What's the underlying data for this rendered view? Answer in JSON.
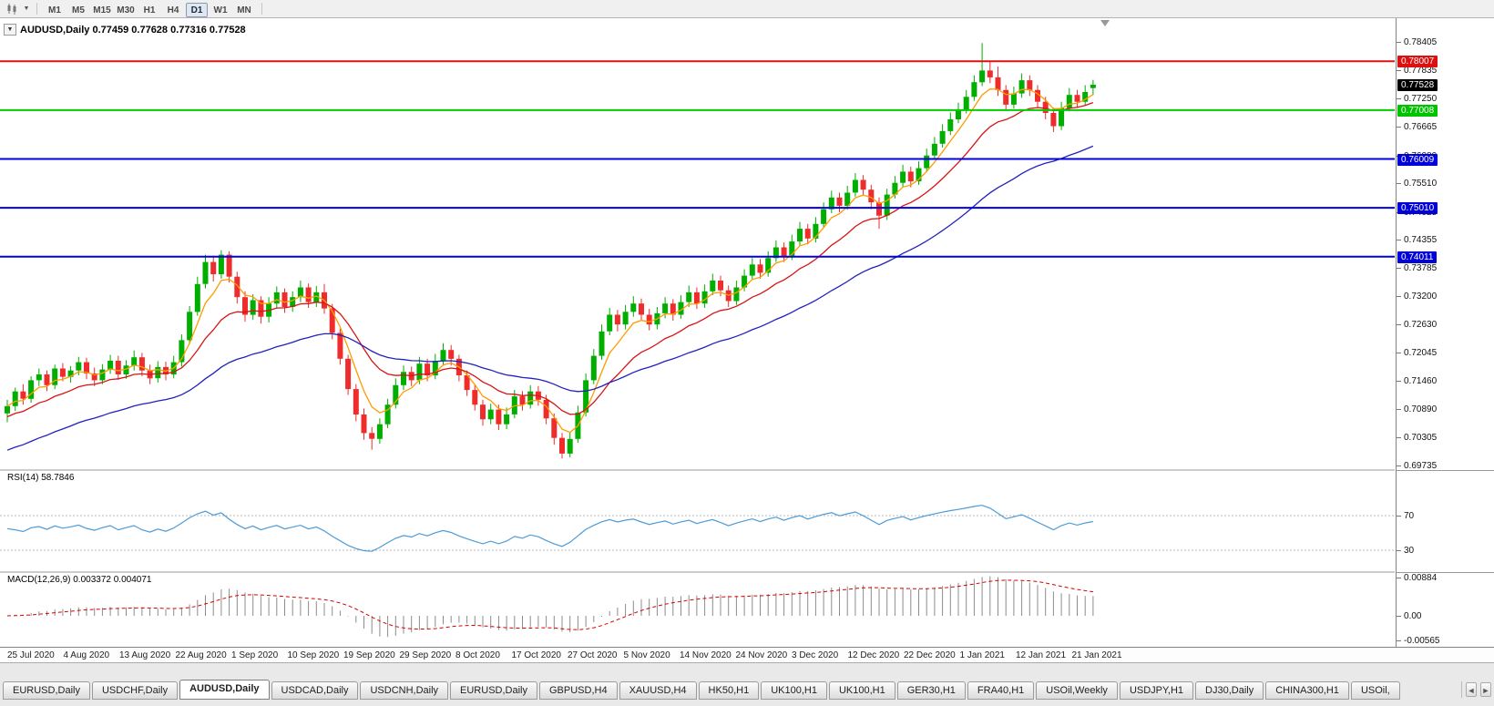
{
  "toolbar": {
    "dropdown_icon": "▼",
    "timeframes": [
      {
        "label": "M1",
        "active": false
      },
      {
        "label": "M5",
        "active": false
      },
      {
        "label": "M15",
        "active": false
      },
      {
        "label": "M30",
        "active": false
      },
      {
        "label": "H1",
        "active": false
      },
      {
        "label": "H4",
        "active": false
      },
      {
        "label": "D1",
        "active": true
      },
      {
        "label": "W1",
        "active": false
      },
      {
        "label": "MN",
        "active": false
      }
    ]
  },
  "chart": {
    "title": "AUDUSD,Daily 0.77459 0.77628 0.77316 0.77528",
    "collapse_icon": "▼"
  },
  "price_scale": {
    "labels": [
      "0.78405",
      "0.77835",
      "0.77250",
      "0.76665",
      "0.76080",
      "0.75510",
      "0.74925",
      "0.74355",
      "0.73785",
      "0.73200",
      "0.72630",
      "0.72045",
      "0.71460",
      "0.70890",
      "0.70305",
      "0.69735"
    ],
    "line_labels": [
      {
        "text": "0.78007",
        "price": 0.78007,
        "bg": "#dd1010",
        "fg": "#ffffff"
      },
      {
        "text": "0.77528",
        "price": 0.77528,
        "bg": "#000000",
        "fg": "#ffffff"
      },
      {
        "text": "0.77008",
        "price": 0.77008,
        "bg": "#00c300",
        "fg": "#ffffff"
      },
      {
        "text": "0.76009",
        "price": 0.76009,
        "bg": "#0000d8",
        "fg": "#ffffff"
      },
      {
        "text": "0.75010",
        "price": 0.7501,
        "bg": "#0000d8",
        "fg": "#ffffff"
      },
      {
        "text": "0.74011",
        "price": 0.74011,
        "bg": "#0000d8",
        "fg": "#ffffff"
      }
    ],
    "rsi_labels": [
      {
        "text": "70",
        "value": 70
      },
      {
        "text": "30",
        "value": 30
      }
    ],
    "macd_labels": [
      {
        "text": "0.00884",
        "value": 0.00884
      },
      {
        "text": "0.00",
        "value": 0
      },
      {
        "text": "-0.00565",
        "value": -0.00565
      }
    ]
  },
  "chart_data": {
    "type": "candlestick",
    "symbol": "AUDUSD",
    "period": "Daily",
    "up_color": "#00ae00",
    "down_color": "#ee2c2c",
    "x_labels": [
      "25 Jul 2020",
      "4 Aug 2020",
      "13 Aug 2020",
      "22 Aug 2020",
      "1 Sep 2020",
      "10 Sep 2020",
      "19 Sep 2020",
      "29 Sep 2020",
      "8 Oct 2020",
      "17 Oct 2020",
      "27 Oct 2020",
      "5 Nov 2020",
      "14 Nov 2020",
      "24 Nov 2020",
      "3 Dec 2020",
      "12 Dec 2020",
      "22 Dec 2020",
      "1 Jan 2021",
      "12 Jan 2021",
      "21 Jan 2021"
    ],
    "y_range": [
      0.69735,
      0.78405
    ],
    "h_lines": [
      {
        "price": 0.78007,
        "color": "#e01010"
      },
      {
        "price": 0.77008,
        "color": "#00ce00"
      },
      {
        "price": 0.76009,
        "color": "#0000e0"
      },
      {
        "price": 0.7501,
        "color": "#0000e0"
      },
      {
        "price": 0.74011,
        "color": "#0000e0"
      }
    ],
    "moving_averages": [
      {
        "period": 5,
        "color": "#ff9c00",
        "seed": null
      },
      {
        "period": 14,
        "color": "#d81414",
        "seed": 0.707
      },
      {
        "period": 38,
        "color": "#2121bd",
        "seed": 0.7
      }
    ],
    "rsi": {
      "title": "RSI(14) 58.7846",
      "period": 14,
      "value": "58.7846",
      "levels": [
        70,
        30
      ],
      "color": "#4f9bd5"
    },
    "macd": {
      "title": "MACD(12,26,9) 0.003372 0.004071",
      "fast": 12,
      "slow": 26,
      "signal": 9,
      "value_main": "0.003372",
      "value_signal": "0.004071",
      "hist_color": "#8c8c8c",
      "signal_color": "#d40000"
    },
    "candles": [
      [
        0.708,
        0.7108,
        0.7062,
        0.7095
      ],
      [
        0.7095,
        0.7133,
        0.7085,
        0.7125
      ],
      [
        0.7125,
        0.714,
        0.7098,
        0.711
      ],
      [
        0.711,
        0.7156,
        0.7102,
        0.7148
      ],
      [
        0.7148,
        0.7172,
        0.7136,
        0.716
      ],
      [
        0.716,
        0.7168,
        0.7126,
        0.7138
      ],
      [
        0.7138,
        0.718,
        0.713,
        0.7172
      ],
      [
        0.7172,
        0.7183,
        0.7146,
        0.7155
      ],
      [
        0.7155,
        0.7177,
        0.7143,
        0.7168
      ],
      [
        0.7168,
        0.7196,
        0.7158,
        0.7185
      ],
      [
        0.7185,
        0.7194,
        0.715,
        0.7162
      ],
      [
        0.7162,
        0.7174,
        0.7136,
        0.7148
      ],
      [
        0.7148,
        0.7181,
        0.714,
        0.717
      ],
      [
        0.717,
        0.72,
        0.7161,
        0.7188
      ],
      [
        0.7188,
        0.7198,
        0.7149,
        0.716
      ],
      [
        0.716,
        0.7189,
        0.7151,
        0.7178
      ],
      [
        0.7178,
        0.7209,
        0.7168,
        0.7195
      ],
      [
        0.7195,
        0.7204,
        0.7156,
        0.7168
      ],
      [
        0.7168,
        0.718,
        0.714,
        0.7152
      ],
      [
        0.7152,
        0.7187,
        0.7143,
        0.7175
      ],
      [
        0.7175,
        0.7186,
        0.7148,
        0.716
      ],
      [
        0.716,
        0.7198,
        0.7152,
        0.7185
      ],
      [
        0.7185,
        0.7242,
        0.7176,
        0.723
      ],
      [
        0.723,
        0.73,
        0.7222,
        0.7288
      ],
      [
        0.7288,
        0.736,
        0.728,
        0.7345
      ],
      [
        0.7345,
        0.7405,
        0.7336,
        0.739
      ],
      [
        0.739,
        0.7403,
        0.735,
        0.7365
      ],
      [
        0.7365,
        0.7414,
        0.7356,
        0.7405
      ],
      [
        0.7405,
        0.7412,
        0.7348,
        0.736
      ],
      [
        0.736,
        0.737,
        0.7305,
        0.7318
      ],
      [
        0.7318,
        0.733,
        0.7268,
        0.7282
      ],
      [
        0.7282,
        0.7324,
        0.7272,
        0.7312
      ],
      [
        0.7312,
        0.732,
        0.7264,
        0.7278
      ],
      [
        0.7278,
        0.7318,
        0.7266,
        0.7305
      ],
      [
        0.7305,
        0.734,
        0.7295,
        0.7328
      ],
      [
        0.7328,
        0.7336,
        0.7286,
        0.7298
      ],
      [
        0.7298,
        0.733,
        0.7288,
        0.7318
      ],
      [
        0.7318,
        0.7352,
        0.7308,
        0.7338
      ],
      [
        0.7338,
        0.7346,
        0.7296,
        0.7308
      ],
      [
        0.7308,
        0.7341,
        0.7298,
        0.7328
      ],
      [
        0.7328,
        0.7345,
        0.7284,
        0.7295
      ],
      [
        0.7295,
        0.7304,
        0.7232,
        0.7245
      ],
      [
        0.7245,
        0.7254,
        0.718,
        0.7192
      ],
      [
        0.7192,
        0.72,
        0.7118,
        0.713
      ],
      [
        0.713,
        0.714,
        0.7064,
        0.7078
      ],
      [
        0.7078,
        0.709,
        0.7026,
        0.704
      ],
      [
        0.704,
        0.7052,
        0.7006,
        0.7028
      ],
      [
        0.7028,
        0.707,
        0.7018,
        0.7058
      ],
      [
        0.7058,
        0.711,
        0.705,
        0.7098
      ],
      [
        0.7098,
        0.7152,
        0.709,
        0.7138
      ],
      [
        0.7138,
        0.7178,
        0.7128,
        0.7165
      ],
      [
        0.7165,
        0.7176,
        0.7136,
        0.7148
      ],
      [
        0.7148,
        0.7196,
        0.714,
        0.7182
      ],
      [
        0.7182,
        0.7192,
        0.7146,
        0.7158
      ],
      [
        0.7158,
        0.7202,
        0.715,
        0.7188
      ],
      [
        0.7188,
        0.7224,
        0.718,
        0.721
      ],
      [
        0.721,
        0.722,
        0.7178,
        0.7192
      ],
      [
        0.7192,
        0.72,
        0.7146,
        0.7158
      ],
      [
        0.7158,
        0.7168,
        0.7116,
        0.7128
      ],
      [
        0.7128,
        0.7138,
        0.7086,
        0.7098
      ],
      [
        0.7098,
        0.7108,
        0.7055,
        0.7068
      ],
      [
        0.7068,
        0.71,
        0.7058,
        0.7088
      ],
      [
        0.7088,
        0.7098,
        0.7046,
        0.7058
      ],
      [
        0.7058,
        0.7092,
        0.7048,
        0.7078
      ],
      [
        0.7078,
        0.7128,
        0.707,
        0.7115
      ],
      [
        0.7115,
        0.7126,
        0.7086,
        0.7098
      ],
      [
        0.7098,
        0.7138,
        0.709,
        0.7125
      ],
      [
        0.7125,
        0.7136,
        0.7096,
        0.7108
      ],
      [
        0.7108,
        0.7118,
        0.7058,
        0.707
      ],
      [
        0.707,
        0.708,
        0.7016,
        0.703
      ],
      [
        0.703,
        0.704,
        0.6988,
        0.6998
      ],
      [
        0.6998,
        0.7042,
        0.699,
        0.7028
      ],
      [
        0.7028,
        0.7096,
        0.702,
        0.7082
      ],
      [
        0.7082,
        0.7162,
        0.7074,
        0.7148
      ],
      [
        0.7148,
        0.7212,
        0.714,
        0.7198
      ],
      [
        0.7198,
        0.7262,
        0.719,
        0.7248
      ],
      [
        0.7248,
        0.7296,
        0.724,
        0.7282
      ],
      [
        0.7282,
        0.7292,
        0.7248,
        0.7262
      ],
      [
        0.7262,
        0.7302,
        0.7252,
        0.7288
      ],
      [
        0.7288,
        0.732,
        0.7278,
        0.7305
      ],
      [
        0.7305,
        0.7315,
        0.727,
        0.7282
      ],
      [
        0.7282,
        0.7294,
        0.725,
        0.7262
      ],
      [
        0.7262,
        0.7298,
        0.7252,
        0.7285
      ],
      [
        0.7285,
        0.7318,
        0.7275,
        0.7305
      ],
      [
        0.7305,
        0.7314,
        0.727,
        0.7282
      ],
      [
        0.7282,
        0.7322,
        0.7274,
        0.7308
      ],
      [
        0.7308,
        0.7342,
        0.7298,
        0.7328
      ],
      [
        0.7328,
        0.7338,
        0.7294,
        0.7305
      ],
      [
        0.7305,
        0.7344,
        0.7296,
        0.733
      ],
      [
        0.733,
        0.7366,
        0.7322,
        0.7352
      ],
      [
        0.7352,
        0.7362,
        0.732,
        0.7332
      ],
      [
        0.7332,
        0.7342,
        0.7298,
        0.731
      ],
      [
        0.731,
        0.7352,
        0.7302,
        0.7338
      ],
      [
        0.7338,
        0.7375,
        0.733,
        0.7362
      ],
      [
        0.7362,
        0.7398,
        0.7354,
        0.7385
      ],
      [
        0.7385,
        0.7396,
        0.7356,
        0.7368
      ],
      [
        0.7368,
        0.7412,
        0.736,
        0.7398
      ],
      [
        0.7398,
        0.7434,
        0.739,
        0.742
      ],
      [
        0.742,
        0.743,
        0.739,
        0.7402
      ],
      [
        0.7402,
        0.7446,
        0.7394,
        0.7432
      ],
      [
        0.7432,
        0.7472,
        0.7424,
        0.7458
      ],
      [
        0.7458,
        0.7468,
        0.7426,
        0.7438
      ],
      [
        0.7438,
        0.7482,
        0.743,
        0.7468
      ],
      [
        0.7468,
        0.7512,
        0.746,
        0.7498
      ],
      [
        0.7498,
        0.7536,
        0.749,
        0.7522
      ],
      [
        0.7522,
        0.7532,
        0.7492,
        0.7505
      ],
      [
        0.7505,
        0.7546,
        0.7497,
        0.7532
      ],
      [
        0.7532,
        0.7572,
        0.7524,
        0.7558
      ],
      [
        0.7558,
        0.7568,
        0.7526,
        0.7538
      ],
      [
        0.7538,
        0.7548,
        0.7498,
        0.7512
      ],
      [
        0.7512,
        0.7522,
        0.7458,
        0.7485
      ],
      [
        0.7485,
        0.754,
        0.7476,
        0.7528
      ],
      [
        0.7528,
        0.7566,
        0.752,
        0.7552
      ],
      [
        0.7552,
        0.7589,
        0.7544,
        0.7575
      ],
      [
        0.7575,
        0.7585,
        0.7543,
        0.7555
      ],
      [
        0.7555,
        0.7596,
        0.7548,
        0.7582
      ],
      [
        0.7582,
        0.7622,
        0.7574,
        0.7608
      ],
      [
        0.7608,
        0.7646,
        0.76,
        0.7632
      ],
      [
        0.7632,
        0.7672,
        0.7624,
        0.7658
      ],
      [
        0.7658,
        0.7696,
        0.765,
        0.7682
      ],
      [
        0.7682,
        0.7716,
        0.7674,
        0.7702
      ],
      [
        0.7702,
        0.7742,
        0.7694,
        0.7728
      ],
      [
        0.7728,
        0.7772,
        0.772,
        0.7758
      ],
      [
        0.7758,
        0.7838,
        0.775,
        0.7782
      ],
      [
        0.7782,
        0.7802,
        0.7756,
        0.7768
      ],
      [
        0.7768,
        0.779,
        0.773,
        0.7742
      ],
      [
        0.7742,
        0.7752,
        0.77,
        0.7712
      ],
      [
        0.7712,
        0.7749,
        0.7704,
        0.7735
      ],
      [
        0.7735,
        0.7776,
        0.7726,
        0.7762
      ],
      [
        0.7762,
        0.7772,
        0.773,
        0.7742
      ],
      [
        0.7742,
        0.7752,
        0.7706,
        0.7718
      ],
      [
        0.7718,
        0.7728,
        0.7682,
        0.7695
      ],
      [
        0.7695,
        0.7706,
        0.7656,
        0.7668
      ],
      [
        0.7668,
        0.7718,
        0.766,
        0.7705
      ],
      [
        0.7705,
        0.7746,
        0.7698,
        0.7732
      ],
      [
        0.7732,
        0.7742,
        0.7706,
        0.7718
      ],
      [
        0.7718,
        0.7752,
        0.771,
        0.7738
      ],
      [
        0.77459,
        0.77628,
        0.77316,
        0.77528
      ]
    ]
  },
  "tabs": {
    "scroll_left_icon": "◄",
    "scroll_right_icon": "►",
    "items": [
      {
        "label": "EURUSD,Daily",
        "active": false
      },
      {
        "label": "USDCHF,Daily",
        "active": false
      },
      {
        "label": "AUDUSD,Daily",
        "active": true
      },
      {
        "label": "USDCAD,Daily",
        "active": false
      },
      {
        "label": "USDCNH,Daily",
        "active": false
      },
      {
        "label": "EURUSD,Daily",
        "active": false
      },
      {
        "label": "GBPUSD,H4",
        "active": false
      },
      {
        "label": "XAUUSD,H4",
        "active": false
      },
      {
        "label": "HK50,H1",
        "active": false
      },
      {
        "label": "UK100,H1",
        "active": false
      },
      {
        "label": "UK100,H1",
        "active": false
      },
      {
        "label": "GER30,H1",
        "active": false
      },
      {
        "label": "FRA40,H1",
        "active": false
      },
      {
        "label": "USOil,Weekly",
        "active": false
      },
      {
        "label": "USDJPY,H1",
        "active": false
      },
      {
        "label": "DJ30,Daily",
        "active": false
      },
      {
        "label": "CHINA300,H1",
        "active": false
      },
      {
        "label": "USOil,",
        "active": false
      }
    ]
  }
}
